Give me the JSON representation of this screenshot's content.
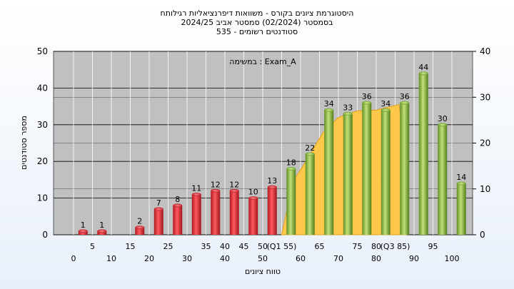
{
  "chart_data": {
    "type": "bar",
    "title": [
      "היסטוגרמת ציונים בקורס - משוואות דיפרנציאליות רגילותח",
      "בסמסטר  (02/2024)  סמסטר אביב 2024/25",
      "סטודנטים רשומים - 535"
    ],
    "annotation": "במשימה : Exam_A",
    "xlabel": "טווח ציונים",
    "ylabel": "מספר סטודנטים",
    "ylim": [
      0,
      50
    ],
    "y_ticks": [
      "0",
      "10",
      "20",
      "30",
      "40",
      "50"
    ],
    "y2lim": [
      0,
      40
    ],
    "y2_ticks": [
      "0",
      "10",
      "20",
      "30",
      "40"
    ],
    "x_ticks_upper": [
      "5",
      "15",
      "25",
      "35",
      "40",
      "45",
      "50",
      "(Q1 55)",
      "65",
      "75",
      "80",
      "(Q3 85)",
      "95"
    ],
    "x_ticks_lower": [
      "0",
      "10",
      "20",
      "30",
      "40",
      "50",
      "60",
      "70",
      "80",
      "90",
      "100"
    ],
    "bars": [
      {
        "center": 2.5,
        "value": 1,
        "color": "red"
      },
      {
        "center": 7.5,
        "value": 1,
        "color": "red"
      },
      {
        "center": 17.5,
        "value": 2,
        "color": "red"
      },
      {
        "center": 22.5,
        "value": 7,
        "color": "red"
      },
      {
        "center": 27.5,
        "value": 8,
        "color": "red"
      },
      {
        "center": 32.5,
        "value": 11,
        "color": "red"
      },
      {
        "center": 37.5,
        "value": 12,
        "color": "red"
      },
      {
        "center": 42.5,
        "value": 12,
        "color": "red"
      },
      {
        "center": 47.5,
        "value": 10,
        "color": "red"
      },
      {
        "center": 52.5,
        "value": 13,
        "color": "red"
      },
      {
        "center": 57.5,
        "value": 18,
        "color": "green"
      },
      {
        "center": 62.5,
        "value": 22,
        "color": "green"
      },
      {
        "center": 67.5,
        "value": 34,
        "color": "green"
      },
      {
        "center": 72.5,
        "value": 33,
        "color": "green"
      },
      {
        "center": 77.5,
        "value": 36,
        "color": "green"
      },
      {
        "center": 82.5,
        "value": 34,
        "color": "green"
      },
      {
        "center": 87.5,
        "value": 36,
        "color": "green"
      },
      {
        "center": 92.5,
        "value": 44,
        "color": "green"
      },
      {
        "center": 97.5,
        "value": 30,
        "color": "green"
      },
      {
        "center": 102.5,
        "value": 14,
        "color": "green"
      }
    ],
    "quartile_band": {
      "x": [
        55,
        58,
        62,
        66,
        70,
        75,
        80,
        86,
        88
      ],
      "y": [
        0,
        14.5,
        21,
        28,
        32,
        33.8,
        34,
        35.5,
        22
      ]
    },
    "colors": {
      "plot_bg": "#c0c0c0",
      "red_bar": "#e0303a",
      "green_bar": "#8fbc3f",
      "band": "#ffc84a"
    },
    "grid": true
  }
}
